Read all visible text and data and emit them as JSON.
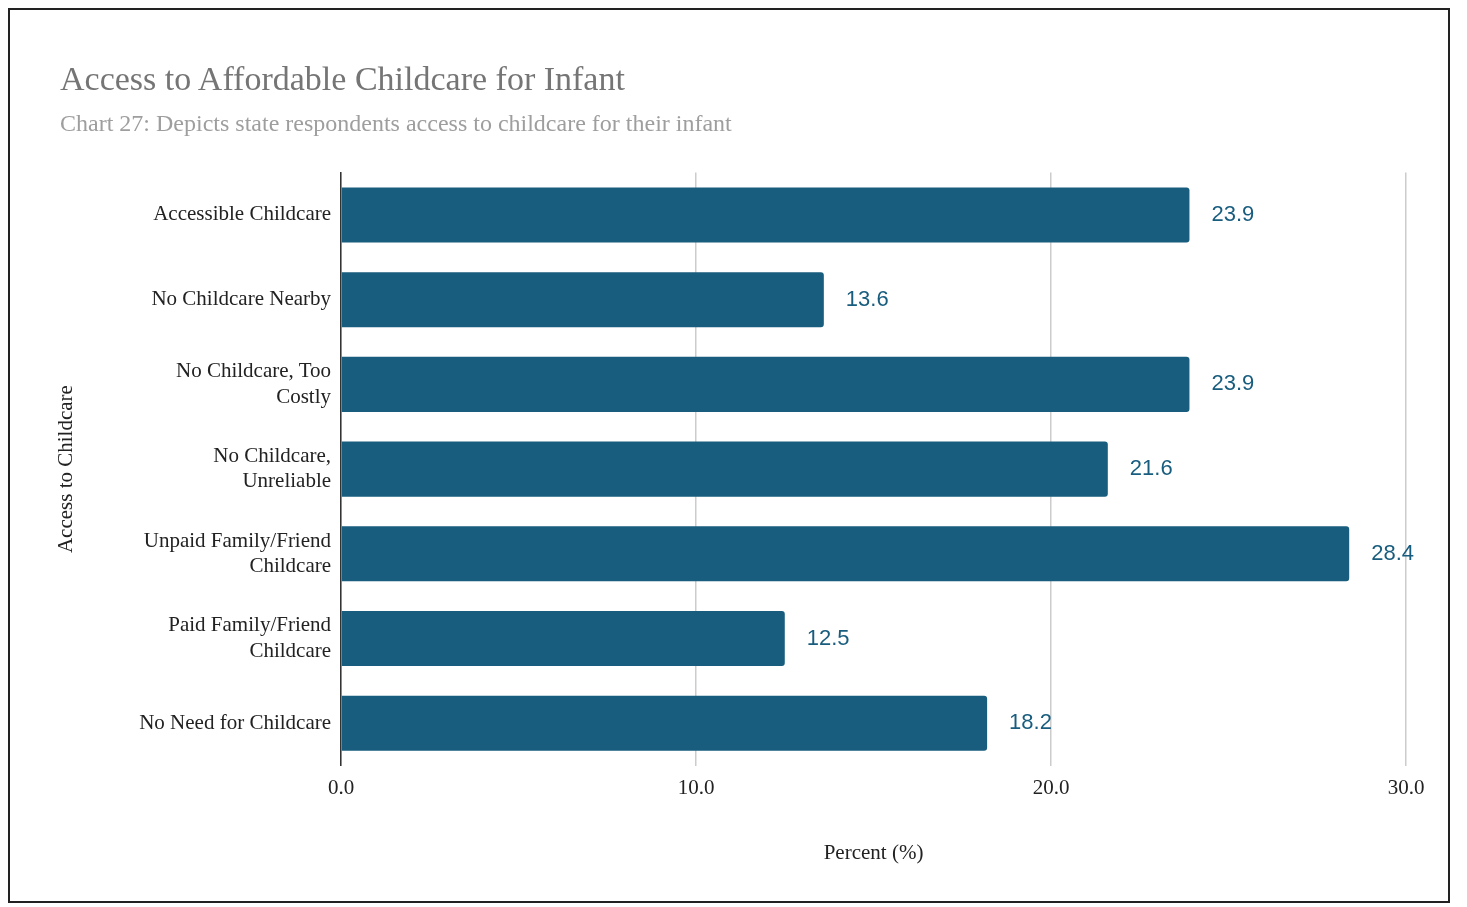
{
  "chart_data": {
    "type": "bar",
    "orientation": "horizontal",
    "title": "Access to Affordable Childcare for Infant",
    "subtitle": "Chart 27: Depicts state respondents access to childcare for their infant",
    "xlabel": "Percent (%)",
    "ylabel": "Access to Childcare",
    "categories": [
      "Accessible Childcare",
      "No Childcare Nearby",
      "No Childcare, Too Costly",
      "No Childcare, Unreliable",
      "Unpaid Family/Friend Childcare",
      "Paid Family/Friend Childcare",
      "No Need for Childcare"
    ],
    "values": [
      23.9,
      13.6,
      23.9,
      21.6,
      28.4,
      12.5,
      18.2
    ],
    "color": "#195d7e",
    "xlim": [
      0,
      30
    ],
    "xticks": [
      {
        "value": 0,
        "label": "0.0"
      },
      {
        "value": 10,
        "label": "10.0"
      },
      {
        "value": 20,
        "label": "20.0"
      },
      {
        "value": 30,
        "label": "30.0"
      }
    ],
    "grid": "x",
    "legend": false,
    "data_labels": true
  }
}
